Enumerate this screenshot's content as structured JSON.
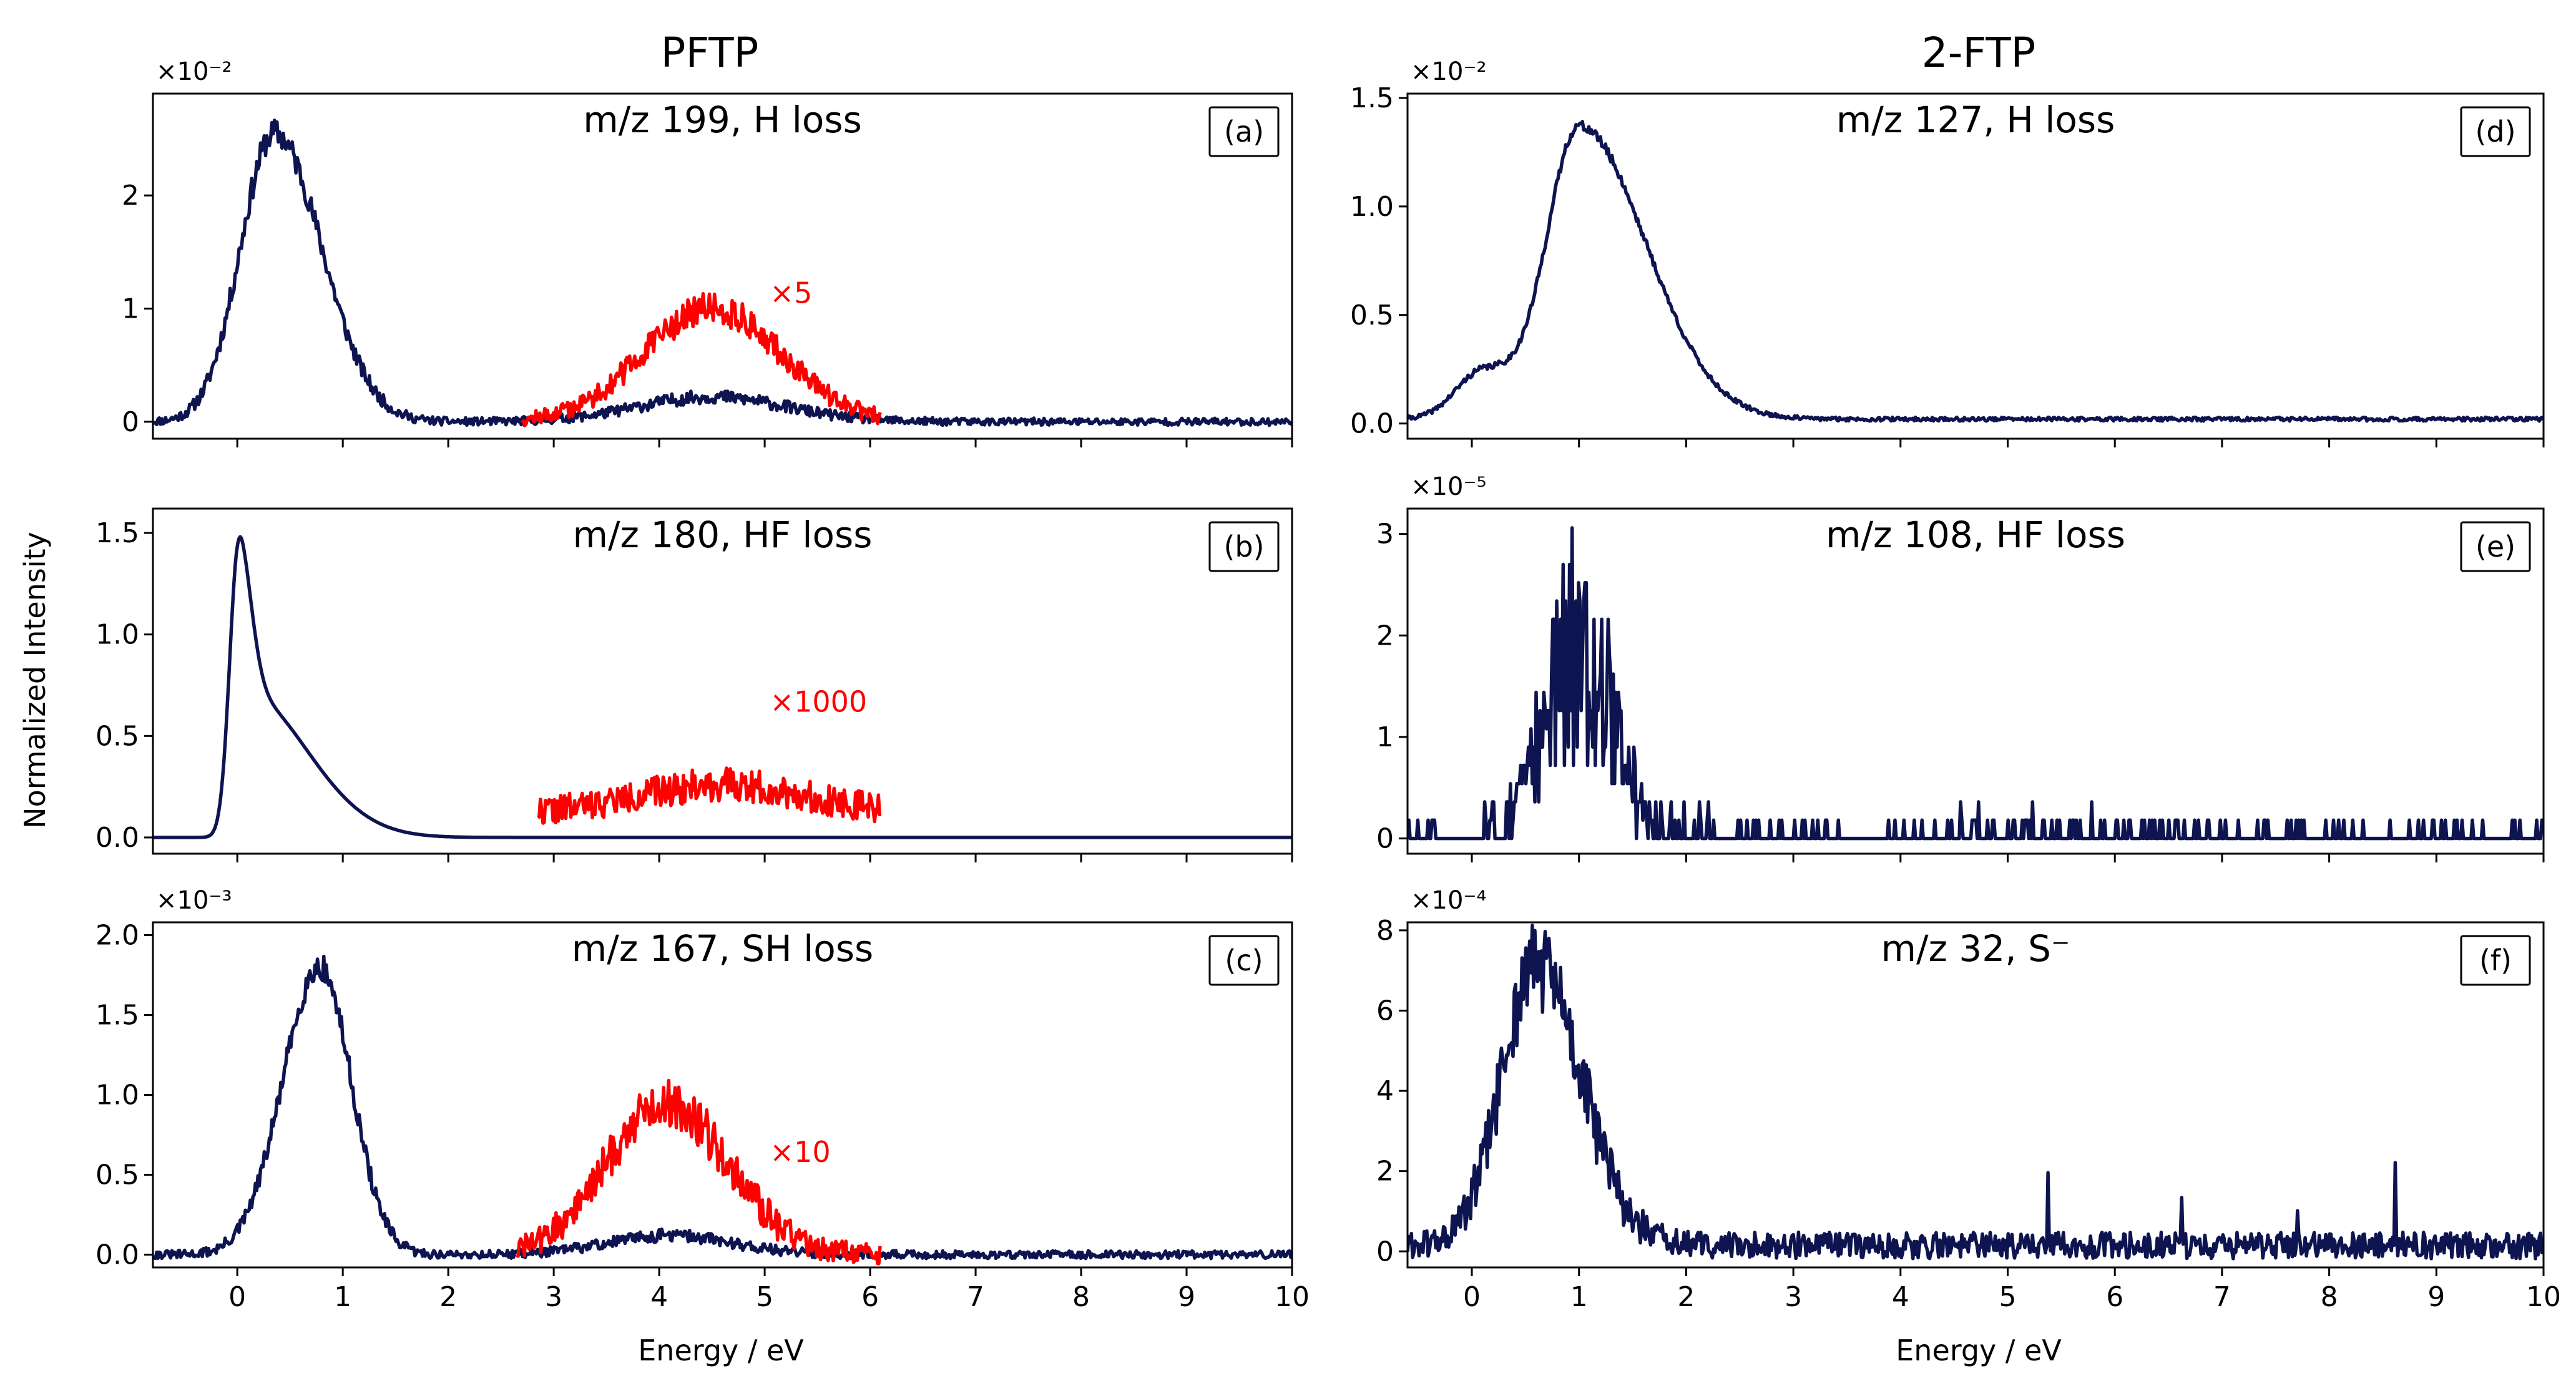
{
  "figure": {
    "column_titles": [
      "PFTP",
      "2-FTP"
    ],
    "xlabel": "Energy / eV",
    "ylabel": "Normalized Intensity"
  },
  "colors": {
    "main": "#0d1450",
    "scaled": "#ff0000",
    "axis": "#000000"
  },
  "chart_data": [
    {
      "id": "a",
      "type": "line",
      "title": "m/z 199, H loss",
      "tag": "(a)",
      "scale_label": "×10⁻²",
      "xlim": [
        -0.8,
        10
      ],
      "ylim": [
        -0.15,
        2.9
      ],
      "yticks": [
        0,
        1,
        2
      ],
      "ytick_labels": [
        "0",
        "1",
        "2"
      ],
      "xticks": [
        0,
        1,
        2,
        3,
        4,
        5,
        6,
        7,
        8,
        9,
        10
      ],
      "xtick_labels": [
        "0",
        "1",
        "2",
        "3",
        "4",
        "5",
        "6",
        "7",
        "8",
        "9",
        "10"
      ],
      "show_xtick_labels": false,
      "series": [
        {
          "name": "main",
          "noise": 0.09,
          "seed": 11,
          "x_range": [
            -0.8,
            10
          ],
          "step": 0.012,
          "baseline": 0.0,
          "peaks": [
            {
              "center": 0.35,
              "height": 2.55,
              "sigma_left": 0.32,
              "sigma_right": 0.45
            },
            {
              "center": 4.5,
              "height": 0.22,
              "sigma_left": 0.7,
              "sigma_right": 0.7
            }
          ]
        },
        {
          "name": "×5",
          "scaled": true,
          "noise": 0.14,
          "seed": 12,
          "x_range": [
            2.7,
            6.1
          ],
          "step": 0.012,
          "baseline": 0.0,
          "peaks": [
            {
              "center": 4.5,
              "height": 1.0,
              "sigma_left": 0.65,
              "sigma_right": 0.65
            }
          ]
        }
      ],
      "multiplier_label": "×5",
      "multiplier_at": [
        5.05,
        1.05
      ]
    },
    {
      "id": "b",
      "type": "line",
      "title": "m/z 180, HF loss",
      "tag": "(b)",
      "scale_label": "",
      "xlim": [
        -0.8,
        10
      ],
      "ylim": [
        -0.08,
        1.62
      ],
      "yticks": [
        0,
        0.5,
        1.0,
        1.5
      ],
      "ytick_labels": [
        "0.0",
        "0.5",
        "1.0",
        "1.5"
      ],
      "xticks": [
        0,
        1,
        2,
        3,
        4,
        5,
        6,
        7,
        8,
        9,
        10
      ],
      "xtick_labels": [
        "0",
        "1",
        "2",
        "3",
        "4",
        "5",
        "6",
        "7",
        "8",
        "9",
        "10"
      ],
      "show_xtick_labels": false,
      "series": [
        {
          "name": "main",
          "noise": 0.0,
          "seed": 21,
          "x_range": [
            -0.8,
            10
          ],
          "step": 0.012,
          "baseline": 0.0,
          "peaks": [
            {
              "center": 0.0,
              "height": 0.8,
              "sigma_left": 0.08,
              "sigma_right": 0.12
            },
            {
              "center": 0.05,
              "height": 0.72,
              "sigma_left": 0.1,
              "sigma_right": 0.6
            }
          ]
        },
        {
          "name": "×1000",
          "scaled": true,
          "noise": 0.12,
          "seed": 22,
          "x_range": [
            2.85,
            6.1
          ],
          "step": 0.012,
          "baseline": 0.12,
          "peaks": [
            {
              "center": 4.6,
              "height": 0.14,
              "sigma_left": 0.8,
              "sigma_right": 0.8
            }
          ]
        }
      ],
      "multiplier_label": "×1000",
      "multiplier_at": [
        5.05,
        0.62
      ]
    },
    {
      "id": "c",
      "type": "line",
      "title": "m/z 167, SH loss",
      "tag": "(c)",
      "scale_label": "×10⁻³",
      "xlim": [
        -0.8,
        10
      ],
      "ylim": [
        -0.08,
        2.08
      ],
      "yticks": [
        0,
        0.5,
        1.0,
        1.5,
        2.0
      ],
      "ytick_labels": [
        "0.0",
        "0.5",
        "1.0",
        "1.5",
        "2.0"
      ],
      "xticks": [
        0,
        1,
        2,
        3,
        4,
        5,
        6,
        7,
        8,
        9,
        10
      ],
      "xtick_labels": [
        "0",
        "1",
        "2",
        "3",
        "4",
        "5",
        "6",
        "7",
        "8",
        "9",
        "10"
      ],
      "show_xtick_labels": true,
      "series": [
        {
          "name": "main",
          "noise": 0.07,
          "seed": 31,
          "x_range": [
            -0.8,
            10
          ],
          "step": 0.012,
          "baseline": 0.0,
          "peaks": [
            {
              "center": 0.78,
              "height": 1.8,
              "sigma_left": 0.35,
              "sigma_right": 0.3
            },
            {
              "center": 4.1,
              "height": 0.12,
              "sigma_left": 0.6,
              "sigma_right": 0.6
            }
          ]
        },
        {
          "name": "×10",
          "scaled": true,
          "noise": 0.16,
          "seed": 32,
          "x_range": [
            2.65,
            6.1
          ],
          "step": 0.012,
          "baseline": 0.0,
          "peaks": [
            {
              "center": 4.05,
              "height": 0.95,
              "sigma_left": 0.55,
              "sigma_right": 0.6
            }
          ]
        }
      ],
      "multiplier_label": "×10",
      "multiplier_at": [
        5.05,
        0.58
      ]
    },
    {
      "id": "d",
      "type": "line",
      "title": "m/z 127, H loss",
      "tag": "(d)",
      "scale_label": "×10⁻²",
      "xlim": [
        -0.6,
        10
      ],
      "ylim": [
        -0.07,
        1.52
      ],
      "yticks": [
        0,
        0.5,
        1.0,
        1.5
      ],
      "ytick_labels": [
        "0.0",
        "0.5",
        "1.0",
        "1.5"
      ],
      "xticks": [
        0,
        1,
        2,
        3,
        4,
        5,
        6,
        7,
        8,
        9,
        10
      ],
      "xtick_labels": [
        "0",
        "1",
        "2",
        "3",
        "4",
        "5",
        "6",
        "7",
        "8",
        "9",
        "10"
      ],
      "show_xtick_labels": false,
      "series": [
        {
          "name": "main",
          "noise": 0.02,
          "seed": 41,
          "x_range": [
            -0.6,
            10
          ],
          "step": 0.012,
          "baseline": 0.02,
          "peaks": [
            {
              "center": 1.0,
              "height": 1.35,
              "sigma_left": 0.3,
              "sigma_right": 0.62
            },
            {
              "center": 0.1,
              "height": 0.22,
              "sigma_left": 0.25,
              "sigma_right": 0.3
            }
          ]
        }
      ],
      "multiplier_label": "",
      "multiplier_at": [
        0,
        0
      ]
    },
    {
      "id": "e",
      "type": "line",
      "title": "m/z 108, HF loss",
      "tag": "(e)",
      "scale_label": "×10⁻⁵",
      "xlim": [
        -0.6,
        10
      ],
      "ylim": [
        -0.15,
        3.25
      ],
      "yticks": [
        0,
        1,
        2,
        3
      ],
      "ytick_labels": [
        "0",
        "1",
        "2",
        "3"
      ],
      "xticks": [
        0,
        1,
        2,
        3,
        4,
        5,
        6,
        7,
        8,
        9,
        10
      ],
      "xtick_labels": [
        "0",
        "1",
        "2",
        "3",
        "4",
        "5",
        "6",
        "7",
        "8",
        "9",
        "10"
      ],
      "show_xtick_labels": false,
      "series": [
        {
          "name": "main",
          "noise": 0.0,
          "sparse": 0.18,
          "seed": 51,
          "x_range": [
            -0.6,
            10
          ],
          "step": 0.012,
          "baseline": 0.0,
          "peaks": [
            {
              "center": 1.0,
              "height": 1.9,
              "sigma_left": 0.32,
              "sigma_right": 0.32
            }
          ]
        }
      ],
      "multiplier_label": "",
      "multiplier_at": [
        0,
        0
      ]
    },
    {
      "id": "f",
      "type": "line",
      "title": "m/z 32, S⁻",
      "tag": "(f)",
      "scale_label": "×10⁻⁴",
      "xlim": [
        -0.6,
        10
      ],
      "ylim": [
        -0.4,
        8.2
      ],
      "yticks": [
        0,
        2,
        4,
        6,
        8
      ],
      "ytick_labels": [
        "0",
        "2",
        "4",
        "6",
        "8"
      ],
      "xticks": [
        0,
        1,
        2,
        3,
        4,
        5,
        6,
        7,
        8,
        9,
        10
      ],
      "xtick_labels": [
        "0",
        "1",
        "2",
        "3",
        "4",
        "5",
        "6",
        "7",
        "8",
        "9",
        "10"
      ],
      "show_xtick_labels": true,
      "series": [
        {
          "name": "main",
          "noise": 0.55,
          "seed": 61,
          "x_range": [
            -0.6,
            10
          ],
          "step": 0.012,
          "baseline": 0.15,
          "peaks": [
            {
              "center": 0.6,
              "height": 7.0,
              "sigma_left": 0.32,
              "sigma_right": 0.42
            }
          ],
          "spikes": [
            [
              5.38,
              1.5
            ],
            [
              6.62,
              1.5
            ],
            [
              8.62,
              2.0
            ],
            [
              7.7,
              0.9
            ]
          ]
        }
      ],
      "multiplier_label": "",
      "multiplier_at": [
        0,
        0
      ]
    }
  ]
}
